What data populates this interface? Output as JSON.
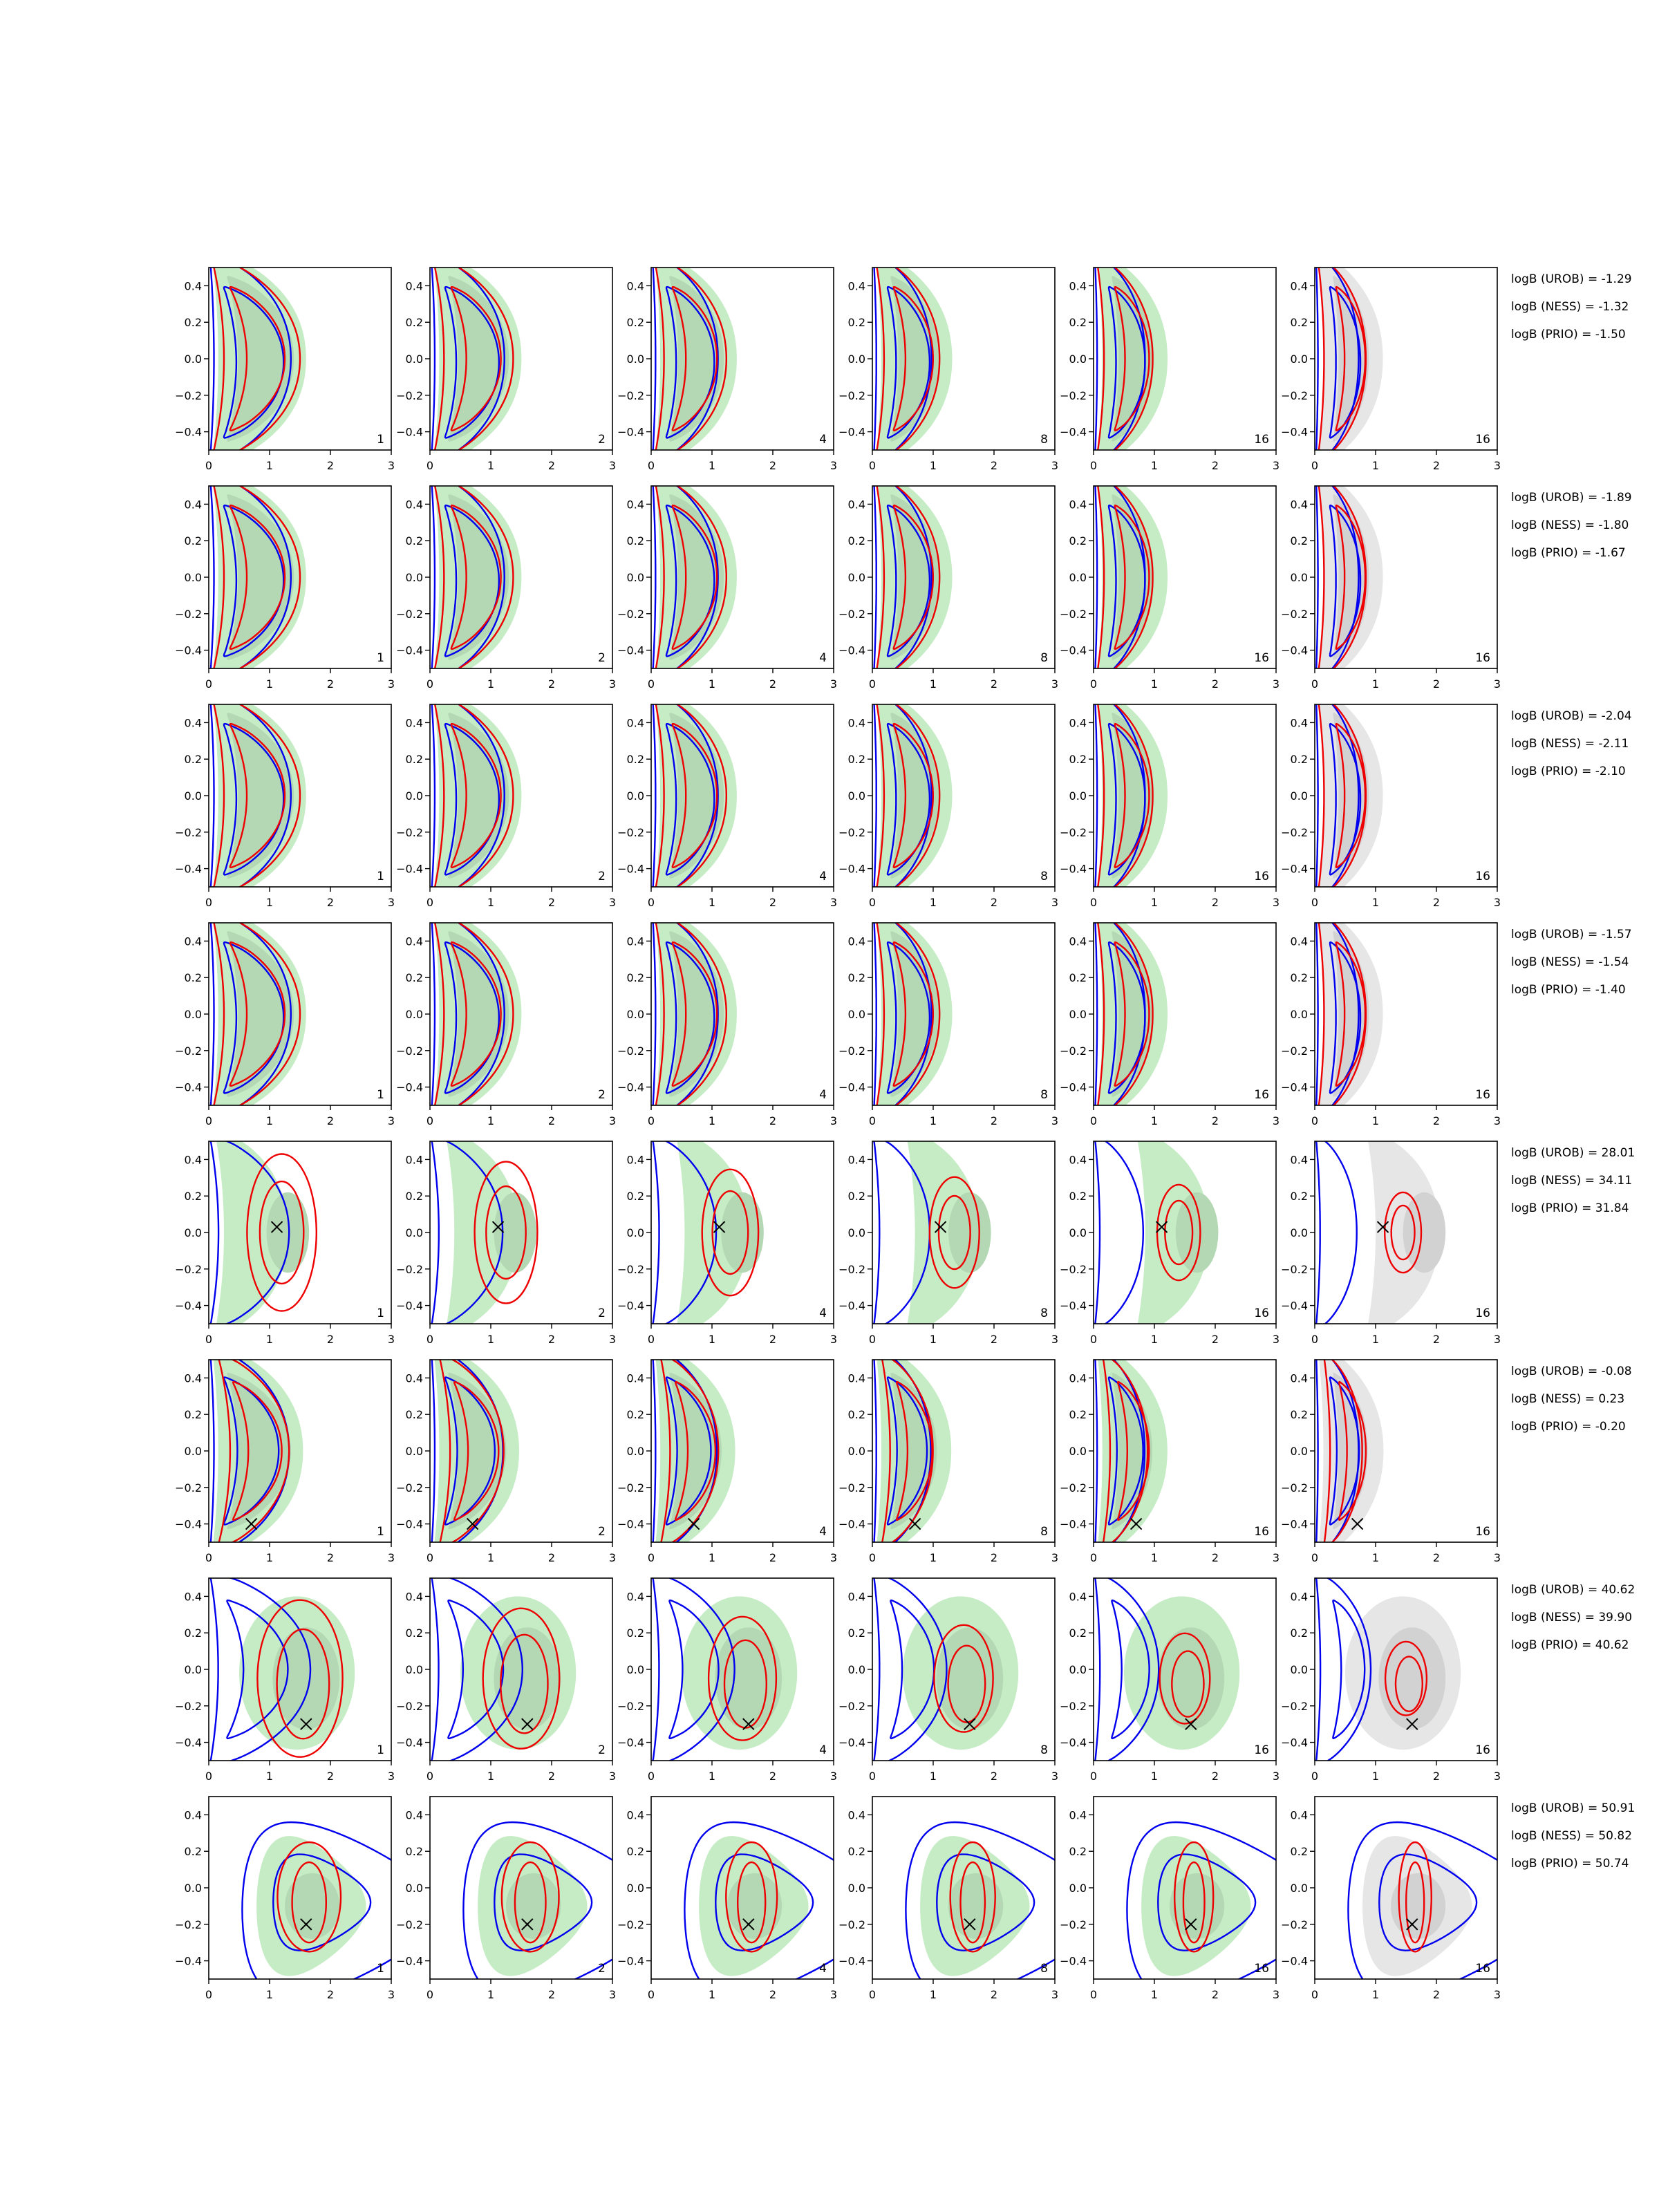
{
  "chart_data": {
    "type": "contour-grid",
    "x_ticks": [
      "0",
      "1",
      "2",
      "3"
    ],
    "y_ticks": [
      "0.4",
      "0.2",
      "0.0",
      "−0.2",
      "−0.4"
    ],
    "xlim": [
      0,
      3
    ],
    "ylim": [
      -0.5,
      0.5
    ],
    "grid": false,
    "column_labels": [
      "1",
      "2",
      "4",
      "8",
      "16",
      "16"
    ],
    "colors": {
      "blue_contour": "#0000ee",
      "red_contour": "#ee0000",
      "green_fill": "#c6ecc6",
      "green_inner": "#b4d8b4",
      "grey_fill": "#e6e6e6",
      "grey_inner": "#d2d2d2",
      "marker": "#000000"
    },
    "rows": [
      {
        "marker": null,
        "logB": [
          "logB (UROB) = -1.29",
          "logB (NESS) = -1.32",
          "logB (PRIO) = -1.50"
        ]
      },
      {
        "marker": null,
        "logB": [
          "logB (UROB) = -1.89",
          "logB (NESS) = -1.80",
          "logB (PRIO) = -1.67"
        ]
      },
      {
        "marker": null,
        "logB": [
          "logB (UROB) = -2.04",
          "logB (NESS) = -2.11",
          "logB (PRIO) = -2.10"
        ]
      },
      {
        "marker": null,
        "logB": [
          "logB (UROB) = -1.57",
          "logB (NESS) = -1.54",
          "logB (PRIO) = -1.40"
        ]
      },
      {
        "marker": [
          1.12,
          0.03
        ],
        "logB": [
          "logB (UROB) = 28.01",
          "logB (NESS) = 34.11",
          "logB (PRIO) = 31.84"
        ]
      },
      {
        "marker": [
          0.7,
          -0.4
        ],
        "logB": [
          "logB (UROB) = -0.08",
          "logB (NESS) = 0.23",
          "logB (PRIO) = -0.20"
        ]
      },
      {
        "marker": [
          1.6,
          -0.3
        ],
        "logB": [
          "logB (UROB) = 40.62",
          "logB (NESS) = 39.90",
          "logB (PRIO) = 40.62"
        ]
      },
      {
        "marker": [
          1.6,
          -0.2
        ],
        "logB": [
          "logB (UROB) = 50.91",
          "logB (NESS) = 50.82",
          "logB (PRIO) = 50.74"
        ]
      }
    ]
  }
}
